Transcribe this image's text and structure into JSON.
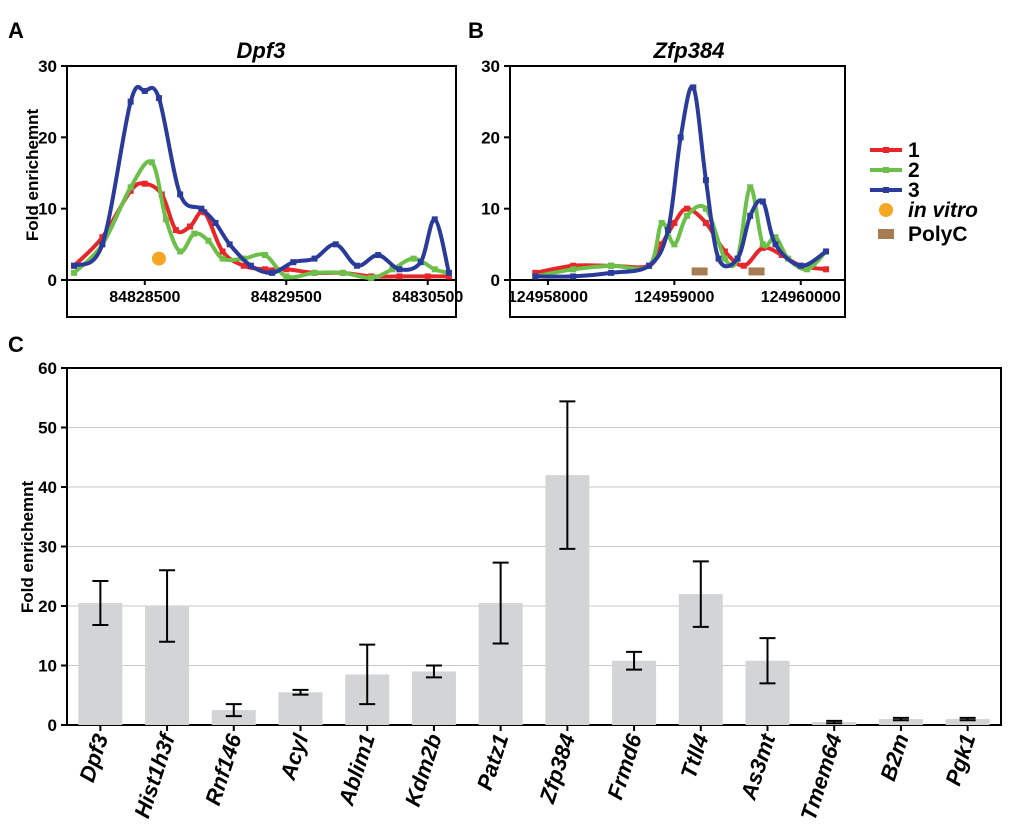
{
  "panels": {
    "a": "A",
    "b": "B",
    "c": "C"
  },
  "legend": {
    "series": [
      {
        "name": "1",
        "color": "#e8262a"
      },
      {
        "name": "2",
        "color": "#6cc04a"
      },
      {
        "name": "3",
        "color": "#2b3b9b"
      }
    ],
    "markers": [
      {
        "name": "in vitro",
        "color": "#f5a623",
        "shape": "circle",
        "italic": true
      },
      {
        "name": "PolyC",
        "color": "#a67c52",
        "shape": "rect",
        "italic": false
      }
    ]
  },
  "chart_data": [
    {
      "type": "line",
      "title": "Dpf3",
      "ylabel": "Fold enrichemnt",
      "ylim": [
        0,
        30
      ],
      "yticks": [
        0,
        10,
        20,
        30
      ],
      "xlim": [
        84827950,
        84830700
      ],
      "xticks": [
        84828500,
        84829500,
        84830500
      ],
      "grid": false,
      "series": [
        {
          "name": "1",
          "color": "#e8262a",
          "x": [
            84828000,
            84828200,
            84828400,
            84828500,
            84828620,
            84828720,
            84828820,
            84828920,
            84829050,
            84829200,
            84829350,
            84829500,
            84829700,
            84829900,
            84830100,
            84830300,
            84830500,
            84830650
          ],
          "y": [
            2,
            6,
            12.5,
            13.5,
            12,
            7,
            7.5,
            9.5,
            4,
            2,
            1.5,
            1.5,
            1,
            1,
            0.5,
            0.5,
            0.5,
            0.5
          ]
        },
        {
          "name": "2",
          "color": "#6cc04a",
          "x": [
            84828000,
            84828200,
            84828400,
            84828550,
            84828650,
            84828750,
            84828850,
            84828950,
            84829050,
            84829200,
            84829350,
            84829500,
            84829700,
            84829900,
            84830100,
            84830250,
            84830400,
            84830550,
            84830650
          ],
          "y": [
            1,
            5,
            13,
            16.5,
            8.5,
            4,
            6.5,
            5.5,
            3,
            3,
            3.5,
            0.5,
            1,
            1,
            0.3,
            1.5,
            3,
            1.5,
            1
          ]
        },
        {
          "name": "3",
          "color": "#2b3b9b",
          "x": [
            84828000,
            84828200,
            84828400,
            84828500,
            84828600,
            84828750,
            84828900,
            84829000,
            84829100,
            84829250,
            84829400,
            84829550,
            84829700,
            84829850,
            84830000,
            84830150,
            84830300,
            84830450,
            84830550,
            84830650
          ],
          "y": [
            2,
            5,
            25,
            26.5,
            25.5,
            12,
            10,
            8,
            5,
            2,
            1,
            2.5,
            3,
            5,
            2,
            3.5,
            1.5,
            2.5,
            8.5,
            1
          ]
        }
      ],
      "markers": [
        {
          "name": "in vitro",
          "x": 84828600,
          "y": 3
        }
      ]
    },
    {
      "type": "line",
      "title": "Zfp384",
      "ylabel": "",
      "ylim": [
        0,
        30
      ],
      "yticks": [
        0,
        10,
        20,
        30
      ],
      "xlim": [
        124957700,
        124960350
      ],
      "xticks": [
        124958000,
        124959000,
        124960000
      ],
      "grid": false,
      "series": [
        {
          "name": "1",
          "color": "#e8262a",
          "x": [
            124957900,
            124958200,
            124958500,
            124958800,
            124958900,
            124959000,
            124959100,
            124959250,
            124959400,
            124959550,
            124959700,
            124959850,
            124960000,
            124960200
          ],
          "y": [
            1,
            2,
            2,
            2,
            5,
            8,
            10,
            8,
            4,
            2,
            4.5,
            3.5,
            2,
            1.5
          ]
        },
        {
          "name": "2",
          "color": "#6cc04a",
          "x": [
            124957900,
            124958200,
            124958500,
            124958800,
            124958900,
            124959000,
            124959100,
            124959250,
            124959400,
            124959500,
            124959600,
            124959700,
            124959800,
            124959900,
            124960050,
            124960200
          ],
          "y": [
            0.5,
            1.5,
            2,
            2,
            8,
            5,
            9,
            10,
            3,
            3,
            13,
            5,
            6,
            3,
            1.5,
            4
          ]
        },
        {
          "name": "3",
          "color": "#2b3b9b",
          "x": [
            124957900,
            124958200,
            124958500,
            124958800,
            124958950,
            124959050,
            124959150,
            124959250,
            124959350,
            124959500,
            124959600,
            124959700,
            124959800,
            124960000,
            124960200
          ],
          "y": [
            0.5,
            0.5,
            1,
            2,
            7,
            20,
            27,
            14,
            3,
            3,
            9,
            11,
            5,
            2,
            4
          ]
        }
      ],
      "markers": [
        {
          "name": "PolyC",
          "x": 124959200,
          "y": 1.2
        },
        {
          "name": "PolyC",
          "x": 124959650,
          "y": 1.2
        }
      ]
    },
    {
      "type": "bar",
      "ylabel": "Fold enrichemnt",
      "ylim": [
        0,
        60
      ],
      "yticks": [
        0,
        10,
        20,
        30,
        40,
        50,
        60
      ],
      "grid": true,
      "bar_color": "#d3d4d6",
      "categories": [
        "Dpf3",
        "Hist1h3f",
        "Rnf146",
        "Acyl",
        "Ablim1",
        "Kdm2b",
        "Patz1",
        "Zfp384",
        "Frmd6",
        "Ttll4",
        "As3mt",
        "Tmem64",
        "B2m",
        "Pgk1"
      ],
      "values": [
        20.5,
        20,
        2.5,
        5.5,
        8.5,
        9,
        20.5,
        42,
        10.8,
        22,
        10.8,
        0.5,
        1,
        1
      ],
      "errors": [
        3.7,
        6,
        1,
        0.4,
        5,
        1,
        6.8,
        12.4,
        1.5,
        5.5,
        3.8,
        0.2,
        0.2,
        0.2
      ]
    }
  ]
}
